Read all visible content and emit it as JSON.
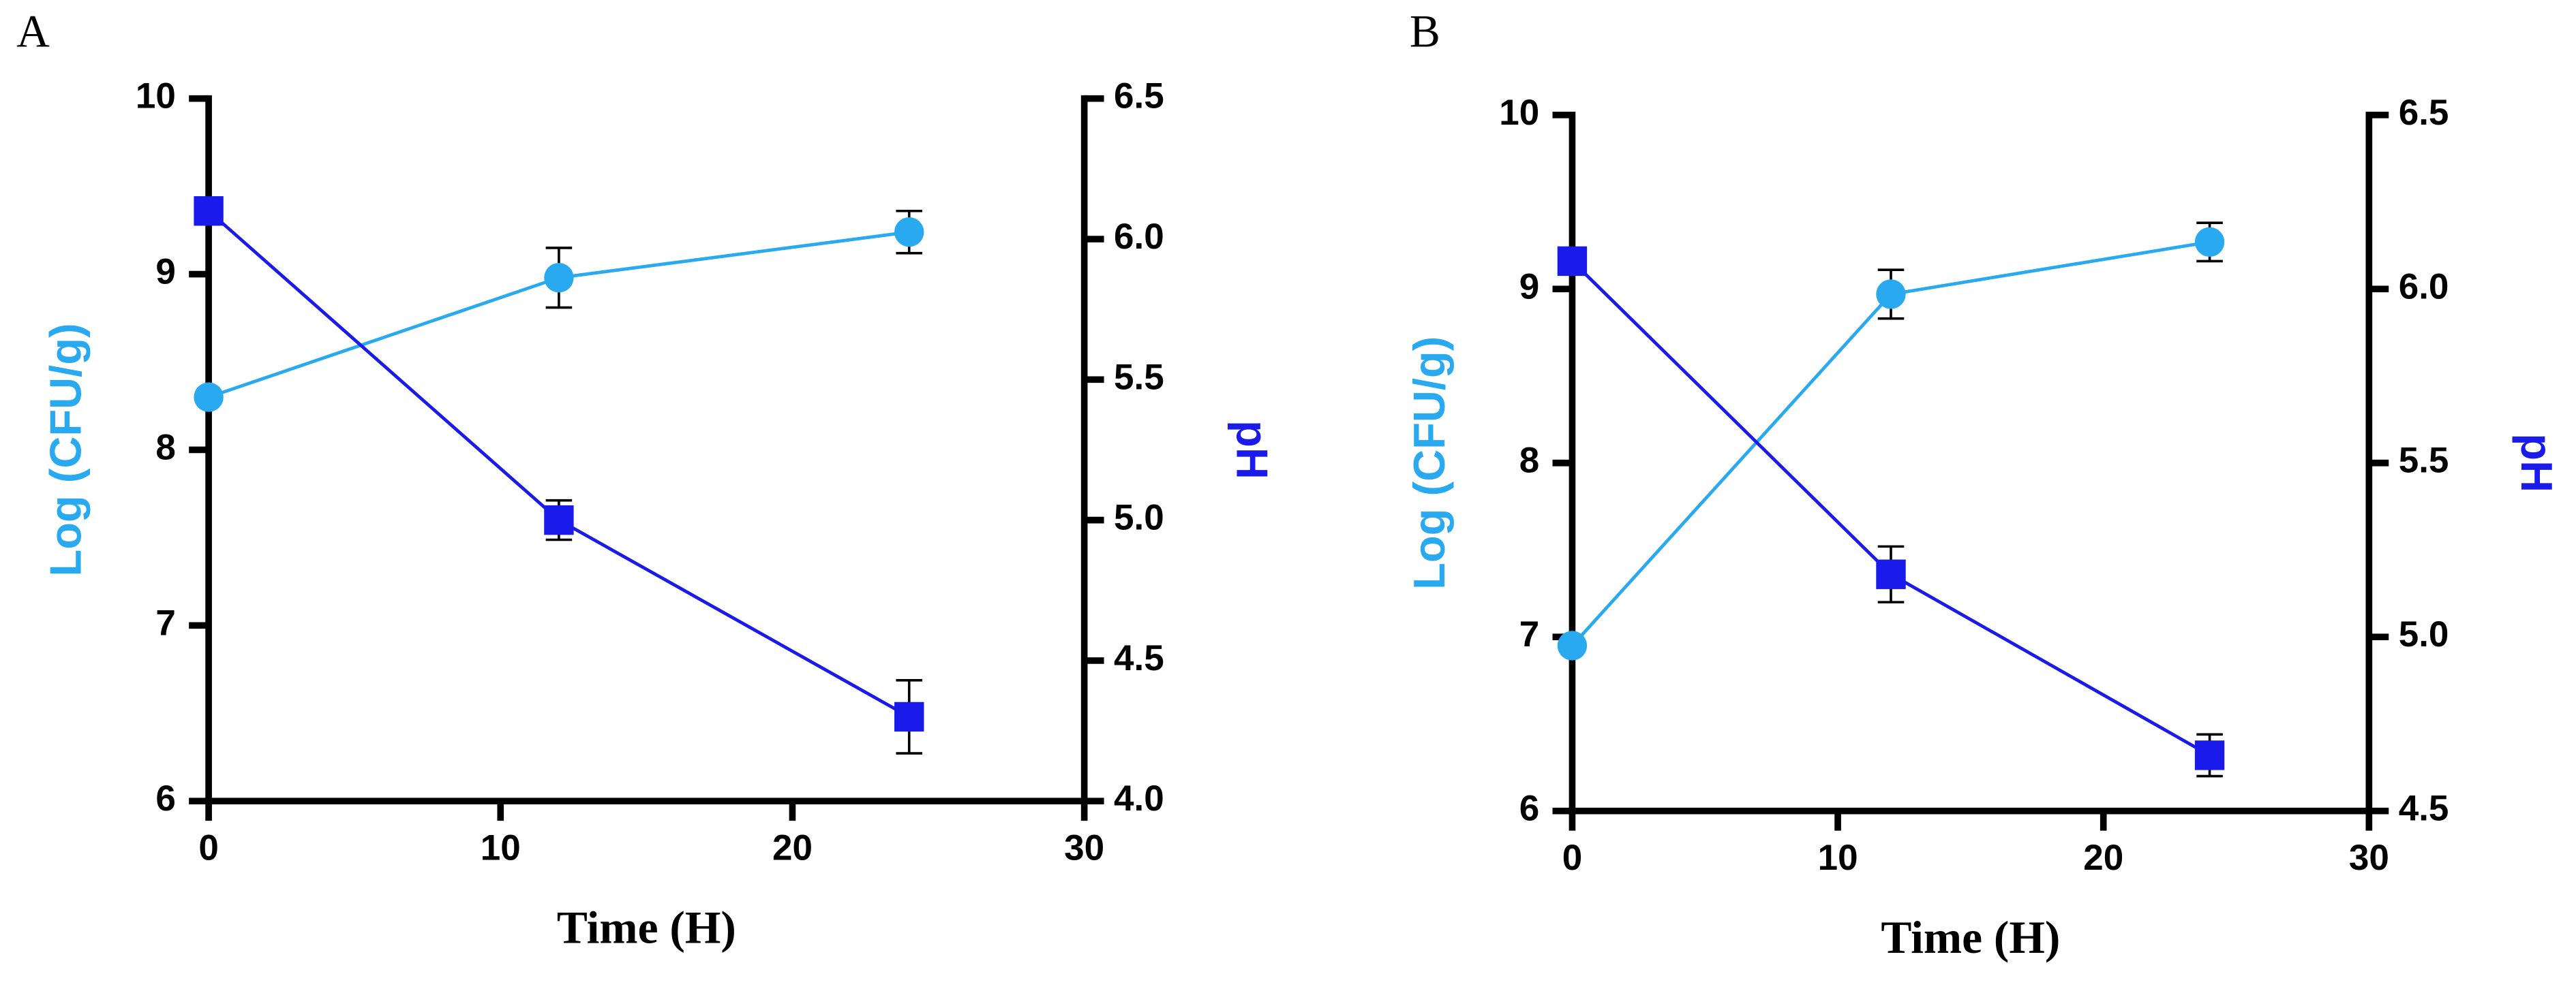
{
  "chart_data": [
    {
      "type": "line",
      "panel_label": "A",
      "xlabel": "Time (H)",
      "ylabel": "Log (CFU/g)",
      "y2label": "pH",
      "x": [
        0,
        12,
        24
      ],
      "xlim": [
        0,
        30
      ],
      "xticks": [
        0,
        10,
        20,
        30
      ],
      "ylim": [
        6,
        10
      ],
      "yticks": [
        6,
        7,
        8,
        9,
        10
      ],
      "y2lim": [
        4,
        6.5
      ],
      "y2ticks": [
        {
          "value": 4,
          "label": "4.0"
        },
        4.5,
        {
          "value": 5,
          "label": "5.0"
        },
        5.5,
        {
          "value": 6,
          "label": "6.0"
        },
        6.5
      ],
      "series": [
        {
          "color": "#29aaf0",
          "marker": "circle",
          "axis": "y",
          "values": [
            8.3,
            8.98,
            9.24
          ],
          "errors": [
            0.03,
            0.17,
            0.12
          ]
        },
        {
          "color": "#1a1aeb",
          "marker": "square",
          "axis": "y2",
          "values": [
            6.1,
            5.0,
            4.3
          ],
          "errors": [
            0.03,
            0.07,
            0.13
          ]
        }
      ]
    },
    {
      "type": "line",
      "panel_label": "B",
      "xlabel": "Time (H)",
      "ylabel": "Log (CFU/g)",
      "y2label": "pH",
      "x": [
        0,
        12,
        24
      ],
      "xlim": [
        0,
        30
      ],
      "xticks": [
        0,
        10,
        20,
        30
      ],
      "ylim": [
        6,
        10
      ],
      "yticks": [
        6,
        7,
        8,
        9,
        10
      ],
      "y2lim": [
        4.5,
        6.5
      ],
      "y2ticks": [
        4.5,
        {
          "value": 5,
          "label": "5.0"
        },
        5.5,
        {
          "value": 6,
          "label": "6.0"
        },
        6.5
      ],
      "series": [
        {
          "color": "#29aaf0",
          "marker": "circle",
          "axis": "y",
          "values": [
            6.95,
            8.97,
            9.27
          ],
          "errors": [
            0.03,
            0.14,
            0.11
          ]
        },
        {
          "color": "#1a1aeb",
          "marker": "square",
          "axis": "y2",
          "values": [
            6.08,
            5.18,
            4.66
          ],
          "errors": [
            0.03,
            0.08,
            0.06
          ]
        }
      ]
    }
  ]
}
